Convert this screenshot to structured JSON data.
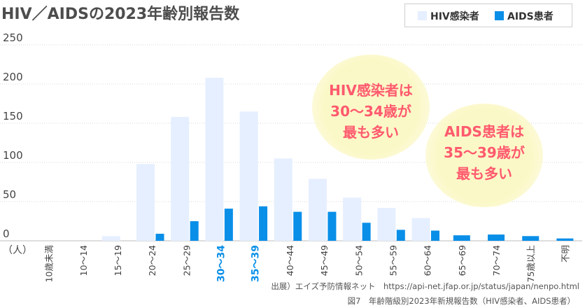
{
  "title": "HIV／AIDSの2023年齢別報告数",
  "legend": {
    "hiv_label": "HIV感染者",
    "aids_label": "AIDS患者",
    "hiv_color": "#e6efff",
    "aids_color": "#0a8fe8"
  },
  "callouts": {
    "hiv": {
      "line1": "HIV感染者は",
      "line2": "30～34歳が",
      "line3": "最も多い"
    },
    "aids": {
      "line1": "AIDS患者は",
      "line2": "35～39歳が",
      "line3": "最も多い"
    },
    "text_color": "#ff5a6e",
    "bubble_color": "#fbf8c8"
  },
  "source": "出展）エイズ予防情報ネット　https://api-net.jfap.or.jp/status/japan/nenpo.html",
  "caption": "図7　年齢階級別2023年新規報告数（HIV感染者、AIDS患者）",
  "chart_data": {
    "type": "bar",
    "ylabel": "（人）",
    "ylim": [
      0,
      250
    ],
    "yticks": [
      0,
      50,
      100,
      150,
      200,
      250
    ],
    "grid": true,
    "legend_position": "top-right",
    "categories": [
      "10歳未満",
      "10～14",
      "15～19",
      "20～24",
      "25～29",
      "30～34",
      "35～39",
      "40～44",
      "45～49",
      "50～54",
      "55～59",
      "60～64",
      "65～69",
      "70～74",
      "75歳以上",
      "不明"
    ],
    "highlight_categories": [
      "30～34",
      "35～39"
    ],
    "highlight_color": "#0a8fe8",
    "series": [
      {
        "name": "HIV感染者",
        "color": "#e6efff",
        "values": [
          0,
          0,
          6,
          98,
          158,
          208,
          165,
          105,
          79,
          55,
          42,
          29,
          0,
          0,
          0,
          0
        ]
      },
      {
        "name": "AIDS患者",
        "color": "#0a8fe8",
        "values": [
          0,
          0,
          0,
          9,
          25,
          41,
          44,
          37,
          37,
          23,
          14,
          13,
          7,
          8,
          6,
          3
        ]
      }
    ]
  }
}
